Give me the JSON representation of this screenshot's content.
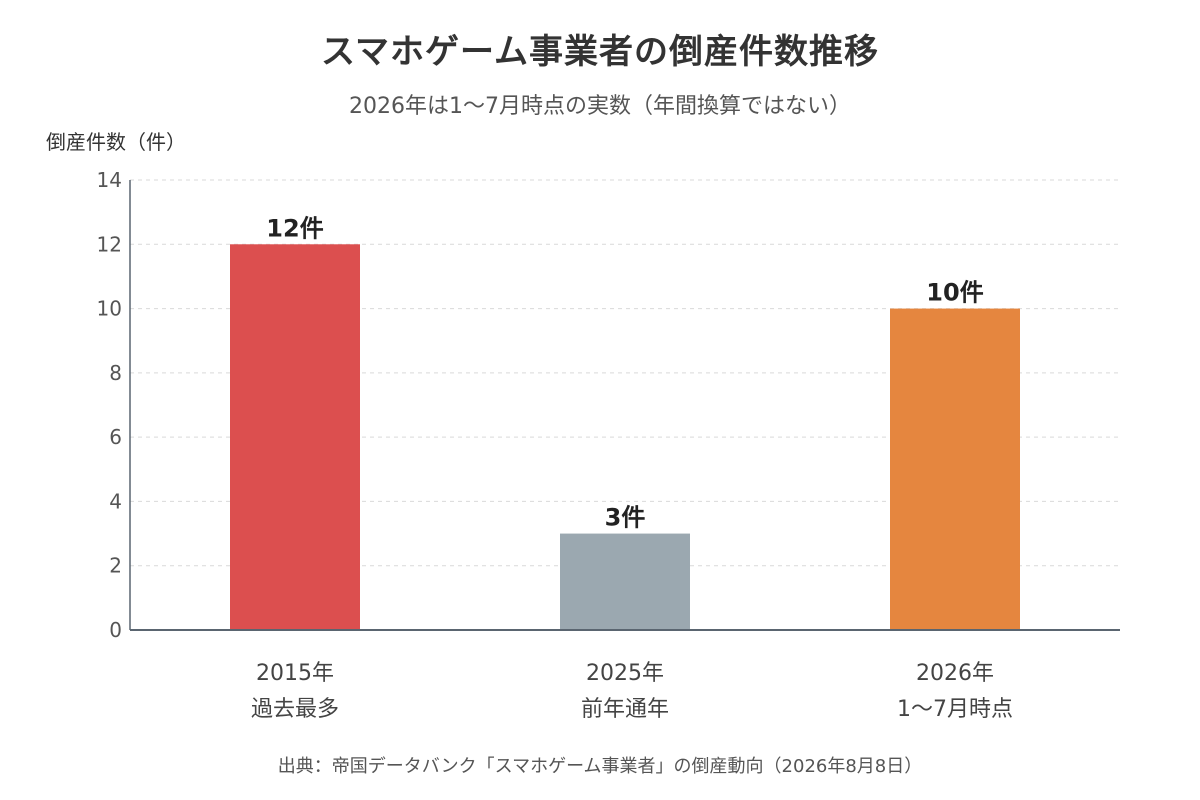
{
  "chart_data": {
    "type": "bar",
    "title": "スマホゲーム事業者の倒産件数推移",
    "subtitle": "2026年は1〜7月時点の実数（年間換算ではない）",
    "ylabel": "倒産件数（件）",
    "xlabel": "",
    "ylim": [
      0,
      14
    ],
    "yticks": [
      "0",
      "2",
      "4",
      "6",
      "8",
      "10",
      "12",
      "14"
    ],
    "grid": true,
    "categories": [
      [
        "2015年",
        "過去最多"
      ],
      [
        "2025年",
        "前年通年"
      ],
      [
        "2026年",
        "1〜7月時点"
      ]
    ],
    "values": [
      12,
      3,
      10
    ],
    "data_labels": [
      "12件",
      "3件",
      "10件"
    ],
    "colors": [
      "#dc4f4f",
      "#9ba8b0",
      "#e5863f"
    ],
    "source": "出典：帝国データバンク「スマホゲーム事業者」の倒産動向（2026年8月8日）"
  }
}
